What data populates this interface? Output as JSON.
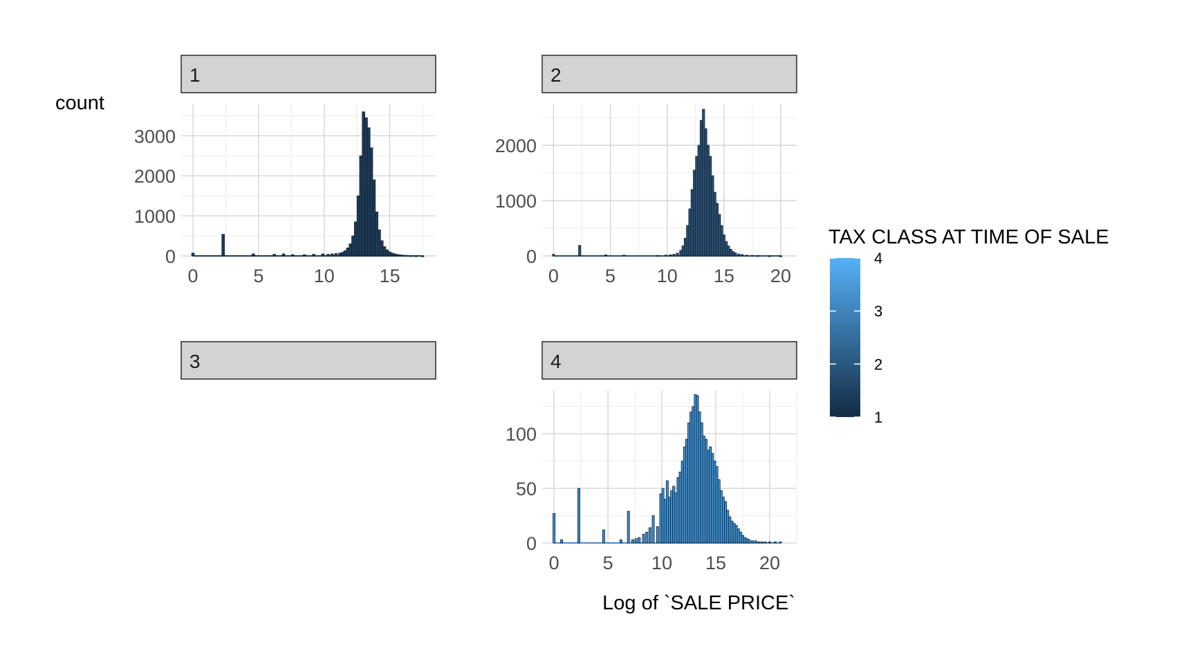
{
  "chart_data": {
    "type": "bar",
    "subtype": "faceted-histogram",
    "title": "",
    "xlabel": "Log of `SALE PRICE`",
    "ylabel": "count",
    "facet_layout": "2x2",
    "grid": true,
    "legend": {
      "title": "TAX CLASS AT TIME OF SALE",
      "type": "colorbar",
      "placement": "right",
      "range": [
        1,
        4
      ],
      "ticks": [
        "1",
        "2",
        "3",
        "4"
      ],
      "colors": {
        "low": "#132b43",
        "high": "#56b1f7"
      }
    },
    "facets": [
      {
        "label": "1",
        "fill": "#1f3a56",
        "xlim": [
          -0.9,
          18.5
        ],
        "ylim": [
          0,
          3800
        ],
        "xticks": [
          "0",
          "5",
          "10",
          "15"
        ],
        "yticks": [
          "0",
          "1000",
          "2000",
          "3000"
        ],
        "x": [
          0.0,
          2.3,
          4.6,
          6.2,
          6.9,
          7.6,
          8.5,
          9.2,
          9.9,
          10.3,
          10.6,
          10.9,
          11.2,
          11.4,
          11.6,
          11.8,
          12.0,
          12.2,
          12.4,
          12.6,
          12.8,
          13.0,
          13.2,
          13.4,
          13.6,
          13.8,
          14.0,
          14.2,
          14.4,
          14.6,
          14.8,
          15.0,
          15.2,
          15.4,
          15.6,
          15.8,
          16.0,
          16.3,
          16.6,
          17.0,
          17.5
        ],
        "values": [
          70,
          540,
          50,
          40,
          50,
          30,
          30,
          40,
          50,
          40,
          50,
          60,
          70,
          90,
          130,
          200,
          300,
          500,
          850,
          1500,
          2500,
          3600,
          3450,
          3200,
          2700,
          1900,
          1100,
          650,
          380,
          230,
          150,
          100,
          70,
          50,
          35,
          25,
          20,
          15,
          10,
          8,
          5
        ]
      },
      {
        "label": "2",
        "fill": "#2a4e6f",
        "xlim": [
          -1.0,
          21.4
        ],
        "ylim": [
          0,
          2750
        ],
        "xticks": [
          "0",
          "5",
          "10",
          "15",
          "20"
        ],
        "yticks": [
          "0",
          "1000",
          "2000"
        ],
        "x": [
          0.0,
          2.3,
          4.6,
          6.2,
          9.2,
          9.9,
          10.3,
          10.6,
          10.9,
          11.2,
          11.4,
          11.6,
          11.8,
          12.0,
          12.2,
          12.4,
          12.6,
          12.8,
          13.0,
          13.2,
          13.4,
          13.6,
          13.8,
          14.0,
          14.2,
          14.4,
          14.6,
          14.8,
          15.0,
          15.2,
          15.4,
          15.6,
          15.8,
          16.0,
          16.3,
          16.6,
          17.0,
          17.5,
          18.0,
          19.0,
          20.0
        ],
        "values": [
          30,
          190,
          20,
          15,
          10,
          15,
          20,
          30,
          50,
          100,
          180,
          320,
          550,
          850,
          1200,
          1550,
          1800,
          2000,
          2450,
          2650,
          2300,
          2000,
          1800,
          1450,
          1150,
          950,
          750,
          550,
          380,
          260,
          180,
          120,
          80,
          55,
          35,
          25,
          15,
          10,
          8,
          5,
          3
        ]
      },
      {
        "label": "3",
        "empty": true
      },
      {
        "label": "4",
        "fill": "#3f8fd0",
        "xlim": [
          -1.1,
          22.5
        ],
        "ylim": [
          0,
          140
        ],
        "xticks": [
          "0",
          "5",
          "10",
          "15",
          "20"
        ],
        "yticks": [
          "0",
          "50",
          "100"
        ],
        "x": [
          0.0,
          0.7,
          2.3,
          4.6,
          6.2,
          6.9,
          7.3,
          7.6,
          7.9,
          8.3,
          8.6,
          8.9,
          9.2,
          9.6,
          9.9,
          10.1,
          10.3,
          10.5,
          10.7,
          10.9,
          11.1,
          11.3,
          11.5,
          11.7,
          11.9,
          12.1,
          12.3,
          12.5,
          12.7,
          12.9,
          13.1,
          13.3,
          13.5,
          13.7,
          13.9,
          14.1,
          14.3,
          14.5,
          14.7,
          14.9,
          15.1,
          15.3,
          15.5,
          15.7,
          15.9,
          16.1,
          16.3,
          16.5,
          16.7,
          16.9,
          17.1,
          17.3,
          17.5,
          17.7,
          17.9,
          18.1,
          18.4,
          18.7,
          19.0,
          19.3,
          19.6,
          20.0,
          20.5,
          21.0
        ],
        "values": [
          27,
          3,
          50,
          12,
          3,
          29,
          3,
          4,
          5,
          8,
          10,
          14,
          25,
          15,
          45,
          50,
          40,
          57,
          42,
          48,
          52,
          46,
          60,
          65,
          75,
          88,
          95,
          110,
          120,
          125,
          136,
          135,
          120,
          110,
          98,
          95,
          85,
          88,
          82,
          75,
          70,
          58,
          48,
          42,
          38,
          30,
          24,
          20,
          18,
          16,
          13,
          10,
          7,
          5,
          4,
          3,
          2,
          2,
          1,
          1,
          1,
          1,
          1,
          1
        ]
      }
    ]
  }
}
